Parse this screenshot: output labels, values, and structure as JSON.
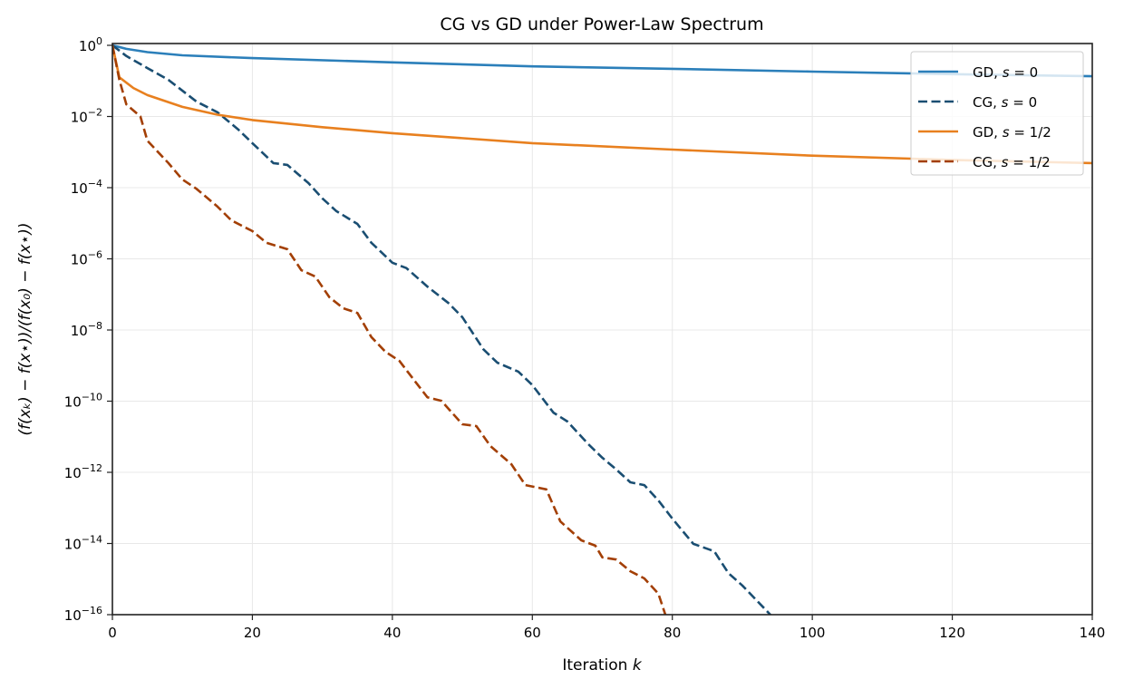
{
  "chart_data": {
    "type": "line",
    "title": "CG vs GD under Power-Law Spectrum",
    "xlabel": "Iteration k",
    "ylabel": "(f(xₖ) − f(x⋆))/(f(x₀) − f(x⋆))",
    "xlim": [
      0,
      140
    ],
    "ylim_log10": [
      -16,
      0
    ],
    "yscale": "log",
    "x_ticks": [
      0,
      20,
      40,
      60,
      80,
      100,
      120,
      140
    ],
    "y_tick_exponents": [
      0,
      -2,
      -4,
      -6,
      -8,
      -10,
      -12,
      -14,
      -16
    ],
    "grid": true,
    "legend_position": "top-right",
    "series": [
      {
        "name": "GD, s = 0",
        "color": "#2b7fba",
        "dashed": false,
        "x": [
          0,
          2,
          5,
          10,
          20,
          40,
          60,
          80,
          100,
          120,
          140
        ],
        "log10_y": [
          0,
          -0.1,
          -0.19,
          -0.28,
          -0.36,
          -0.48,
          -0.59,
          -0.66,
          -0.74,
          -0.81,
          -0.87
        ]
      },
      {
        "name": "CG, s = 0",
        "color": "#1a4e72",
        "dashed": true,
        "x": [
          0,
          2,
          5,
          8,
          12,
          15,
          18,
          20,
          23,
          25,
          28,
          30,
          32,
          35,
          37,
          40,
          42,
          45,
          48,
          50,
          53,
          55,
          58,
          60,
          63,
          65,
          68,
          70,
          72,
          74,
          76,
          78,
          80,
          83,
          86,
          88,
          90,
          92,
          94,
          95
        ],
        "log10_y": [
          0,
          -0.3,
          -0.64,
          -0.97,
          -1.58,
          -1.88,
          -2.37,
          -2.75,
          -3.31,
          -3.36,
          -3.87,
          -4.3,
          -4.66,
          -5.02,
          -5.55,
          -6.11,
          -6.26,
          -6.78,
          -7.24,
          -7.64,
          -8.54,
          -8.92,
          -9.17,
          -9.55,
          -10.32,
          -10.57,
          -11.21,
          -11.59,
          -11.92,
          -12.28,
          -12.36,
          -12.79,
          -13.3,
          -14.01,
          -14.22,
          -14.83,
          -15.18,
          -15.59,
          -16,
          -16.3
        ]
      },
      {
        "name": "GD, s = 1/2",
        "color": "#e8801f",
        "dashed": false,
        "x": [
          0,
          1,
          3,
          5,
          10,
          15,
          20,
          30,
          40,
          60,
          80,
          100,
          120,
          140
        ],
        "log10_y": [
          0,
          -0.9,
          -1.2,
          -1.4,
          -1.73,
          -1.95,
          -2.1,
          -2.3,
          -2.47,
          -2.75,
          -2.93,
          -3.1,
          -3.22,
          -3.31
        ]
      },
      {
        "name": "CG, s = 1/2",
        "color": "#a33f05",
        "dashed": true,
        "x": [
          0,
          1,
          2,
          4,
          5,
          8,
          10,
          12,
          15,
          17,
          20,
          22,
          25,
          27,
          29,
          31,
          33,
          35,
          37,
          39,
          41,
          43,
          45,
          47,
          50,
          52,
          54,
          57,
          59,
          62,
          64,
          67,
          69,
          70,
          72,
          74,
          76,
          78,
          79,
          80
        ],
        "log10_y": [
          0,
          -0.97,
          -1.66,
          -2,
          -2.68,
          -3.31,
          -3.77,
          -4.03,
          -4.53,
          -4.92,
          -5.22,
          -5.55,
          -5.73,
          -6.32,
          -6.5,
          -7.08,
          -7.39,
          -7.52,
          -8.2,
          -8.61,
          -8.87,
          -9.38,
          -9.89,
          -9.99,
          -10.65,
          -10.7,
          -11.26,
          -11.77,
          -12.36,
          -12.48,
          -13.38,
          -13.91,
          -14.06,
          -14.39,
          -14.45,
          -14.78,
          -14.98,
          -15.41,
          -16,
          -16.3
        ]
      }
    ]
  }
}
